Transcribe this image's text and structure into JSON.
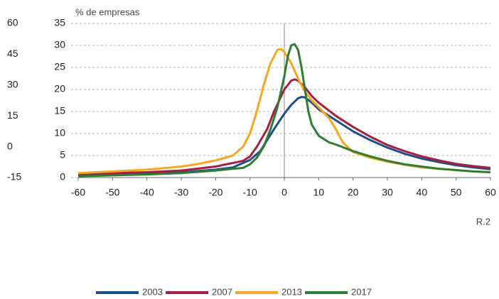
{
  "chart_data": {
    "type": "line",
    "ylabel": "% de empresas",
    "annotation": "R.2",
    "xlim": [
      -60,
      60
    ],
    "xticks": [
      -60,
      -50,
      -40,
      -30,
      -20,
      -10,
      0,
      10,
      20,
      30,
      40,
      50,
      60
    ],
    "ylim": [
      0,
      35
    ],
    "yticks": [
      0,
      5,
      10,
      15,
      20,
      25,
      30,
      35
    ],
    "y2lim": [
      -15,
      60
    ],
    "y2ticks": [
      -15,
      0,
      15,
      30,
      45,
      60
    ],
    "grid": true,
    "series": [
      {
        "name": "2003",
        "color": "#1f4e8c",
        "x": [
          -60,
          -50,
          -40,
          -30,
          -20,
          -15,
          -10,
          -7,
          -5,
          -3,
          0,
          2,
          4,
          5,
          6,
          8,
          10,
          15,
          20,
          25,
          30,
          35,
          40,
          45,
          50,
          55,
          60
        ],
        "values": [
          0.5,
          0.7,
          0.9,
          1.2,
          1.8,
          2.3,
          4,
          6,
          8.5,
          11,
          14.5,
          16.5,
          18,
          18.3,
          18.2,
          17,
          15.5,
          13,
          10.5,
          8.5,
          6.8,
          5.4,
          4.3,
          3.5,
          2.8,
          2.3,
          1.9
        ]
      },
      {
        "name": "2007",
        "color": "#a3213f",
        "x": [
          -60,
          -50,
          -40,
          -30,
          -20,
          -17,
          -15,
          -12,
          -10,
          -8,
          -5,
          -3,
          0,
          2,
          3,
          4,
          6,
          8,
          10,
          15,
          20,
          25,
          30,
          35,
          40,
          45,
          50,
          55,
          60
        ],
        "values": [
          0.8,
          1,
          1.2,
          1.6,
          2.5,
          3,
          3.3,
          3.8,
          4.8,
          7,
          11,
          15,
          20,
          22,
          22.3,
          22,
          20.5,
          18.5,
          17,
          14,
          11.5,
          9.3,
          7.4,
          6,
          4.8,
          3.9,
          3.1,
          2.6,
          2.2
        ]
      },
      {
        "name": "2013",
        "color": "#f5a623",
        "x": [
          -60,
          -50,
          -40,
          -30,
          -25,
          -20,
          -15,
          -12,
          -10,
          -8,
          -6,
          -4,
          -2,
          -1,
          0,
          2,
          4,
          6,
          8,
          10,
          13,
          15,
          17,
          20,
          25,
          30,
          35,
          40,
          45,
          50,
          55,
          60
        ],
        "values": [
          1,
          1.4,
          1.8,
          2.5,
          3.1,
          3.9,
          5,
          7,
          10,
          15,
          21,
          26,
          29,
          29.2,
          28.5,
          26,
          22.5,
          19.5,
          17.5,
          16,
          13.5,
          11,
          8,
          5.8,
          4.5,
          3.6,
          2.9,
          2.3,
          2,
          1.7,
          1.4,
          1.2
        ]
      },
      {
        "name": "2017",
        "color": "#2e7d32",
        "x": [
          -60,
          -50,
          -40,
          -30,
          -20,
          -15,
          -12,
          -10,
          -8,
          -6,
          -4,
          -2,
          0,
          1,
          2,
          3,
          4,
          5,
          6,
          7,
          8,
          10,
          13,
          15,
          20,
          25,
          30,
          35,
          40,
          45,
          50,
          55,
          60
        ],
        "values": [
          0.3,
          0.5,
          0.7,
          1,
          1.6,
          2,
          2.2,
          3,
          4.5,
          7,
          11,
          16,
          23,
          27.5,
          30,
          30.3,
          29,
          25,
          20,
          15,
          12,
          9.5,
          8,
          7.5,
          6,
          4.8,
          3.8,
          3,
          2.5,
          2,
          1.7,
          1.4,
          1.2
        ]
      }
    ]
  }
}
